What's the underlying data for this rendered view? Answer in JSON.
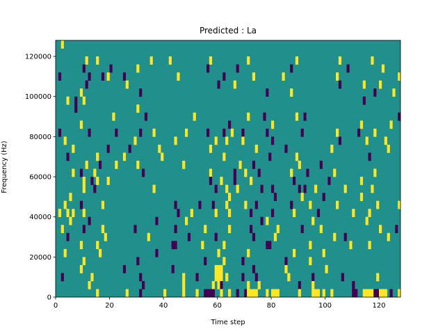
{
  "chart_data": {
    "type": "heatmap",
    "title": "Predicted : La",
    "xlabel": "Time step",
    "ylabel": "Frequency (Hz)",
    "xlim": [
      0,
      128
    ],
    "ylim": [
      0,
      128000
    ],
    "x_ticks": [
      0,
      20,
      40,
      60,
      80,
      100,
      120
    ],
    "y_ticks": [
      0,
      20000,
      40000,
      60000,
      80000,
      100000,
      120000
    ],
    "x_tick_labels": [
      "0",
      "20",
      "40",
      "60",
      "80",
      "100",
      "120"
    ],
    "y_tick_labels": [
      "0",
      "20000",
      "40000",
      "60000",
      "80000",
      "100000",
      "120000"
    ],
    "grid": false,
    "colormap": "viridis",
    "value_levels": [
      -1,
      0,
      1
    ],
    "background_value": 0,
    "colors": {
      "low": "#440154",
      "mid": "#21908d",
      "high": "#fde725"
    },
    "n_time_steps": 128,
    "n_freq_bins": 32,
    "freq_bin_width_hz": 4000,
    "cells": [
      [
        2,
        31,
        1
      ],
      [
        11,
        29,
        1
      ],
      [
        15,
        29,
        1
      ],
      [
        35,
        29,
        1
      ],
      [
        42,
        29,
        1
      ],
      [
        57,
        29,
        1
      ],
      [
        71,
        29,
        1
      ],
      [
        89,
        29,
        1
      ],
      [
        105,
        29,
        1
      ],
      [
        117,
        29,
        1
      ],
      [
        10,
        28,
        -1
      ],
      [
        20,
        28,
        -1
      ],
      [
        30,
        28,
        1
      ],
      [
        56,
        28,
        -1
      ],
      [
        67,
        28,
        -1
      ],
      [
        87,
        28,
        -1
      ],
      [
        108,
        28,
        -1
      ],
      [
        121,
        28,
        1
      ],
      [
        1,
        27,
        -1
      ],
      [
        12,
        27,
        -1
      ],
      [
        17,
        27,
        -1
      ],
      [
        19,
        27,
        1
      ],
      [
        25,
        27,
        -1
      ],
      [
        45,
        27,
        1
      ],
      [
        62,
        27,
        -1
      ],
      [
        73,
        27,
        1
      ],
      [
        84,
        27,
        1
      ],
      [
        104,
        27,
        1
      ],
      [
        127,
        27,
        1
      ],
      [
        11,
        26,
        -1
      ],
      [
        26,
        26,
        1
      ],
      [
        60,
        26,
        -1
      ],
      [
        66,
        26,
        1
      ],
      [
        105,
        26,
        -1
      ],
      [
        114,
        26,
        1
      ],
      [
        120,
        26,
        1
      ],
      [
        9,
        25,
        1
      ],
      [
        31,
        25,
        -1
      ],
      [
        78,
        25,
        -1
      ],
      [
        87,
        25,
        1
      ],
      [
        118,
        25,
        -1
      ],
      [
        125,
        25,
        1
      ],
      [
        7,
        24,
        -1
      ],
      [
        4,
        24,
        1
      ],
      [
        10,
        24,
        1
      ],
      [
        114,
        24,
        -1
      ],
      [
        7,
        23,
        -1
      ],
      [
        30,
        23,
        1
      ],
      [
        21,
        22,
        1
      ],
      [
        33,
        22,
        -1
      ],
      [
        51,
        22,
        1
      ],
      [
        71,
        22,
        1
      ],
      [
        77,
        22,
        -1
      ],
      [
        89,
        22,
        1
      ],
      [
        92,
        22,
        -1
      ],
      [
        127,
        22,
        -1
      ],
      [
        9,
        21,
        1
      ],
      [
        64,
        21,
        -1
      ],
      [
        80,
        21,
        1
      ],
      [
        113,
        21,
        1
      ],
      [
        124,
        21,
        1
      ],
      [
        1,
        20,
        -1
      ],
      [
        12,
        20,
        -1
      ],
      [
        22,
        20,
        -1
      ],
      [
        31,
        20,
        -1
      ],
      [
        36,
        20,
        1
      ],
      [
        48,
        20,
        1
      ],
      [
        56,
        20,
        -1
      ],
      [
        62,
        20,
        -1
      ],
      [
        65,
        20,
        1
      ],
      [
        69,
        20,
        -1
      ],
      [
        78,
        20,
        -1
      ],
      [
        91,
        20,
        -1
      ],
      [
        104,
        20,
        1
      ],
      [
        112,
        20,
        -1
      ],
      [
        118,
        20,
        1
      ],
      [
        3,
        19,
        1
      ],
      [
        29,
        19,
        1
      ],
      [
        44,
        19,
        1
      ],
      [
        59,
        19,
        1
      ],
      [
        63,
        19,
        1
      ],
      [
        69,
        19,
        1
      ],
      [
        80,
        19,
        -1
      ],
      [
        105,
        19,
        -1
      ],
      [
        115,
        19,
        1
      ],
      [
        122,
        19,
        1
      ],
      [
        6,
        18,
        1
      ],
      [
        19,
        18,
        -1
      ],
      [
        27,
        18,
        -1
      ],
      [
        38,
        18,
        1
      ],
      [
        57,
        18,
        1
      ],
      [
        74,
        18,
        1
      ],
      [
        85,
        18,
        -1
      ],
      [
        102,
        18,
        1
      ],
      [
        123,
        18,
        1
      ],
      [
        4,
        17,
        -1
      ],
      [
        15,
        17,
        1
      ],
      [
        25,
        17,
        1
      ],
      [
        39,
        17,
        1
      ],
      [
        62,
        17,
        1
      ],
      [
        79,
        17,
        -1
      ],
      [
        89,
        17,
        1
      ],
      [
        116,
        17,
        -1
      ],
      [
        11,
        16,
        1
      ],
      [
        16,
        16,
        -1
      ],
      [
        22,
        16,
        1
      ],
      [
        30,
        16,
        1
      ],
      [
        47,
        16,
        1
      ],
      [
        68,
        16,
        1
      ],
      [
        73,
        16,
        -1
      ],
      [
        90,
        16,
        1
      ],
      [
        98,
        16,
        -1
      ],
      [
        6,
        15,
        1
      ],
      [
        9,
        15,
        -1
      ],
      [
        14,
        15,
        1
      ],
      [
        32,
        15,
        -1
      ],
      [
        57,
        15,
        1
      ],
      [
        66,
        15,
        -1
      ],
      [
        70,
        15,
        1
      ],
      [
        75,
        15,
        -1
      ],
      [
        87,
        15,
        1
      ],
      [
        93,
        15,
        -1
      ],
      [
        103,
        15,
        1
      ],
      [
        118,
        15,
        1
      ],
      [
        10,
        14,
        1
      ],
      [
        13,
        14,
        -1
      ],
      [
        15,
        14,
        1
      ],
      [
        19,
        14,
        1
      ],
      [
        57,
        14,
        -1
      ],
      [
        61,
        14,
        1
      ],
      [
        66,
        14,
        -1
      ],
      [
        72,
        14,
        1
      ],
      [
        88,
        14,
        -1
      ],
      [
        101,
        14,
        -1
      ],
      [
        113,
        14,
        1
      ],
      [
        10,
        13,
        1
      ],
      [
        14,
        13,
        -1
      ],
      [
        36,
        13,
        1
      ],
      [
        59,
        13,
        -1
      ],
      [
        63,
        13,
        1
      ],
      [
        67,
        13,
        1
      ],
      [
        76,
        13,
        -1
      ],
      [
        80,
        13,
        -1
      ],
      [
        90,
        13,
        -1
      ],
      [
        92,
        13,
        -1
      ],
      [
        96,
        13,
        1
      ],
      [
        107,
        13,
        1
      ],
      [
        117,
        13,
        1
      ],
      [
        5,
        12,
        1
      ],
      [
        64,
        12,
        1
      ],
      [
        81,
        12,
        -1
      ],
      [
        91,
        12,
        1
      ],
      [
        99,
        12,
        -1
      ],
      [
        113,
        12,
        1
      ],
      [
        3,
        11,
        1
      ],
      [
        9,
        11,
        -1
      ],
      [
        17,
        11,
        1
      ],
      [
        44,
        11,
        -1
      ],
      [
        53,
        11,
        -1
      ],
      [
        58,
        11,
        -1
      ],
      [
        63,
        11,
        1
      ],
      [
        70,
        11,
        1
      ],
      [
        74,
        11,
        -1
      ],
      [
        87,
        11,
        -1
      ],
      [
        94,
        11,
        1
      ],
      [
        104,
        11,
        1
      ],
      [
        119,
        11,
        1
      ],
      [
        127,
        11,
        1
      ],
      [
        1,
        10,
        1
      ],
      [
        4,
        10,
        1
      ],
      [
        6,
        10,
        1
      ],
      [
        10,
        10,
        1
      ],
      [
        45,
        10,
        -1
      ],
      [
        50,
        10,
        1
      ],
      [
        59,
        10,
        1
      ],
      [
        64,
        10,
        1
      ],
      [
        72,
        10,
        -1
      ],
      [
        80,
        10,
        -1
      ],
      [
        88,
        10,
        1
      ],
      [
        97,
        10,
        -1
      ],
      [
        110,
        10,
        1
      ],
      [
        116,
        10,
        1
      ],
      [
        5,
        9,
        1
      ],
      [
        12,
        9,
        -1
      ],
      [
        37,
        9,
        -1
      ],
      [
        48,
        9,
        1
      ],
      [
        76,
        9,
        -1
      ],
      [
        78,
        9,
        1
      ],
      [
        95,
        9,
        1
      ],
      [
        115,
        9,
        1
      ],
      [
        2,
        8,
        1
      ],
      [
        10,
        8,
        -1
      ],
      [
        17,
        8,
        1
      ],
      [
        29,
        8,
        -1
      ],
      [
        44,
        8,
        -1
      ],
      [
        55,
        8,
        1
      ],
      [
        64,
        8,
        1
      ],
      [
        72,
        8,
        -1
      ],
      [
        82,
        8,
        1
      ],
      [
        91,
        8,
        -1
      ],
      [
        98,
        8,
        1
      ],
      [
        120,
        8,
        1
      ],
      [
        126,
        8,
        -1
      ],
      [
        4,
        7,
        -1
      ],
      [
        18,
        7,
        1
      ],
      [
        34,
        7,
        1
      ],
      [
        49,
        7,
        -1
      ],
      [
        59,
        7,
        -1
      ],
      [
        73,
        7,
        -1
      ],
      [
        81,
        7,
        1
      ],
      [
        103,
        7,
        1
      ],
      [
        107,
        7,
        -1
      ],
      [
        123,
        7,
        1
      ],
      [
        9,
        6,
        1
      ],
      [
        15,
        6,
        1
      ],
      [
        43,
        6,
        -1
      ],
      [
        44,
        6,
        -1
      ],
      [
        54,
        6,
        1
      ],
      [
        62,
        6,
        1
      ],
      [
        78,
        6,
        -1
      ],
      [
        79,
        6,
        -1
      ],
      [
        94,
        6,
        1
      ],
      [
        109,
        6,
        1
      ],
      [
        116,
        6,
        1
      ],
      [
        3,
        5,
        1
      ],
      [
        16,
        5,
        1
      ],
      [
        37,
        5,
        -1
      ],
      [
        60,
        5,
        1
      ],
      [
        71,
        5,
        1
      ],
      [
        88,
        5,
        1
      ],
      [
        99,
        5,
        1
      ],
      [
        10,
        4,
        1
      ],
      [
        30,
        4,
        -1
      ],
      [
        55,
        4,
        -1
      ],
      [
        62,
        4,
        1
      ],
      [
        69,
        4,
        -1
      ],
      [
        85,
        4,
        -1
      ],
      [
        94,
        4,
        1
      ],
      [
        9,
        3,
        1
      ],
      [
        25,
        3,
        -1
      ],
      [
        43,
        3,
        -1
      ],
      [
        59,
        3,
        1
      ],
      [
        60,
        3,
        1
      ],
      [
        61,
        3,
        1
      ],
      [
        73,
        3,
        -1
      ],
      [
        85,
        3,
        1
      ],
      [
        100,
        3,
        1
      ],
      [
        2,
        2,
        -1
      ],
      [
        13,
        2,
        1
      ],
      [
        31,
        2,
        -1
      ],
      [
        47,
        2,
        1
      ],
      [
        52,
        2,
        -1
      ],
      [
        59,
        2,
        1
      ],
      [
        60,
        2,
        1
      ],
      [
        61,
        2,
        1
      ],
      [
        63,
        2,
        1
      ],
      [
        69,
        2,
        -1
      ],
      [
        74,
        2,
        -1
      ],
      [
        86,
        2,
        1
      ],
      [
        95,
        2,
        -1
      ],
      [
        106,
        2,
        -1
      ],
      [
        119,
        2,
        1
      ],
      [
        12,
        1,
        1
      ],
      [
        32,
        1,
        -1
      ],
      [
        47,
        1,
        1
      ],
      [
        58,
        1,
        1
      ],
      [
        60,
        1,
        1
      ],
      [
        61,
        1,
        -1
      ],
      [
        71,
        1,
        1
      ],
      [
        75,
        1,
        1
      ],
      [
        90,
        1,
        -1
      ],
      [
        95,
        1,
        1
      ],
      [
        110,
        1,
        -1
      ],
      [
        15,
        0,
        1
      ],
      [
        26,
        0,
        1
      ],
      [
        31,
        0,
        -1
      ],
      [
        40,
        0,
        1
      ],
      [
        47,
        0,
        1
      ],
      [
        52,
        0,
        1
      ],
      [
        55,
        0,
        -1
      ],
      [
        56,
        0,
        -1
      ],
      [
        57,
        0,
        -1
      ],
      [
        58,
        0,
        -1
      ],
      [
        61,
        0,
        1
      ],
      [
        64,
        0,
        1
      ],
      [
        67,
        0,
        -1
      ],
      [
        70,
        0,
        -1
      ],
      [
        71,
        0,
        1
      ],
      [
        72,
        0,
        1
      ],
      [
        73,
        0,
        1
      ],
      [
        74,
        0,
        1
      ],
      [
        78,
        0,
        1
      ],
      [
        80,
        0,
        1
      ],
      [
        81,
        0,
        1
      ],
      [
        82,
        0,
        1
      ],
      [
        90,
        0,
        1
      ],
      [
        95,
        0,
        1
      ],
      [
        96,
        0,
        1
      ],
      [
        97,
        0,
        1
      ],
      [
        99,
        0,
        1
      ],
      [
        102,
        0,
        1
      ],
      [
        110,
        0,
        -1
      ],
      [
        111,
        0,
        -1
      ],
      [
        114,
        0,
        1
      ],
      [
        115,
        0,
        1
      ],
      [
        116,
        0,
        1
      ],
      [
        117,
        0,
        1
      ],
      [
        118,
        0,
        -1
      ],
      [
        119,
        0,
        -1
      ],
      [
        120,
        0,
        1
      ],
      [
        121,
        0,
        1
      ],
      [
        122,
        0,
        1
      ],
      [
        124,
        0,
        -1
      ],
      [
        127,
        0,
        1
      ]
    ]
  }
}
